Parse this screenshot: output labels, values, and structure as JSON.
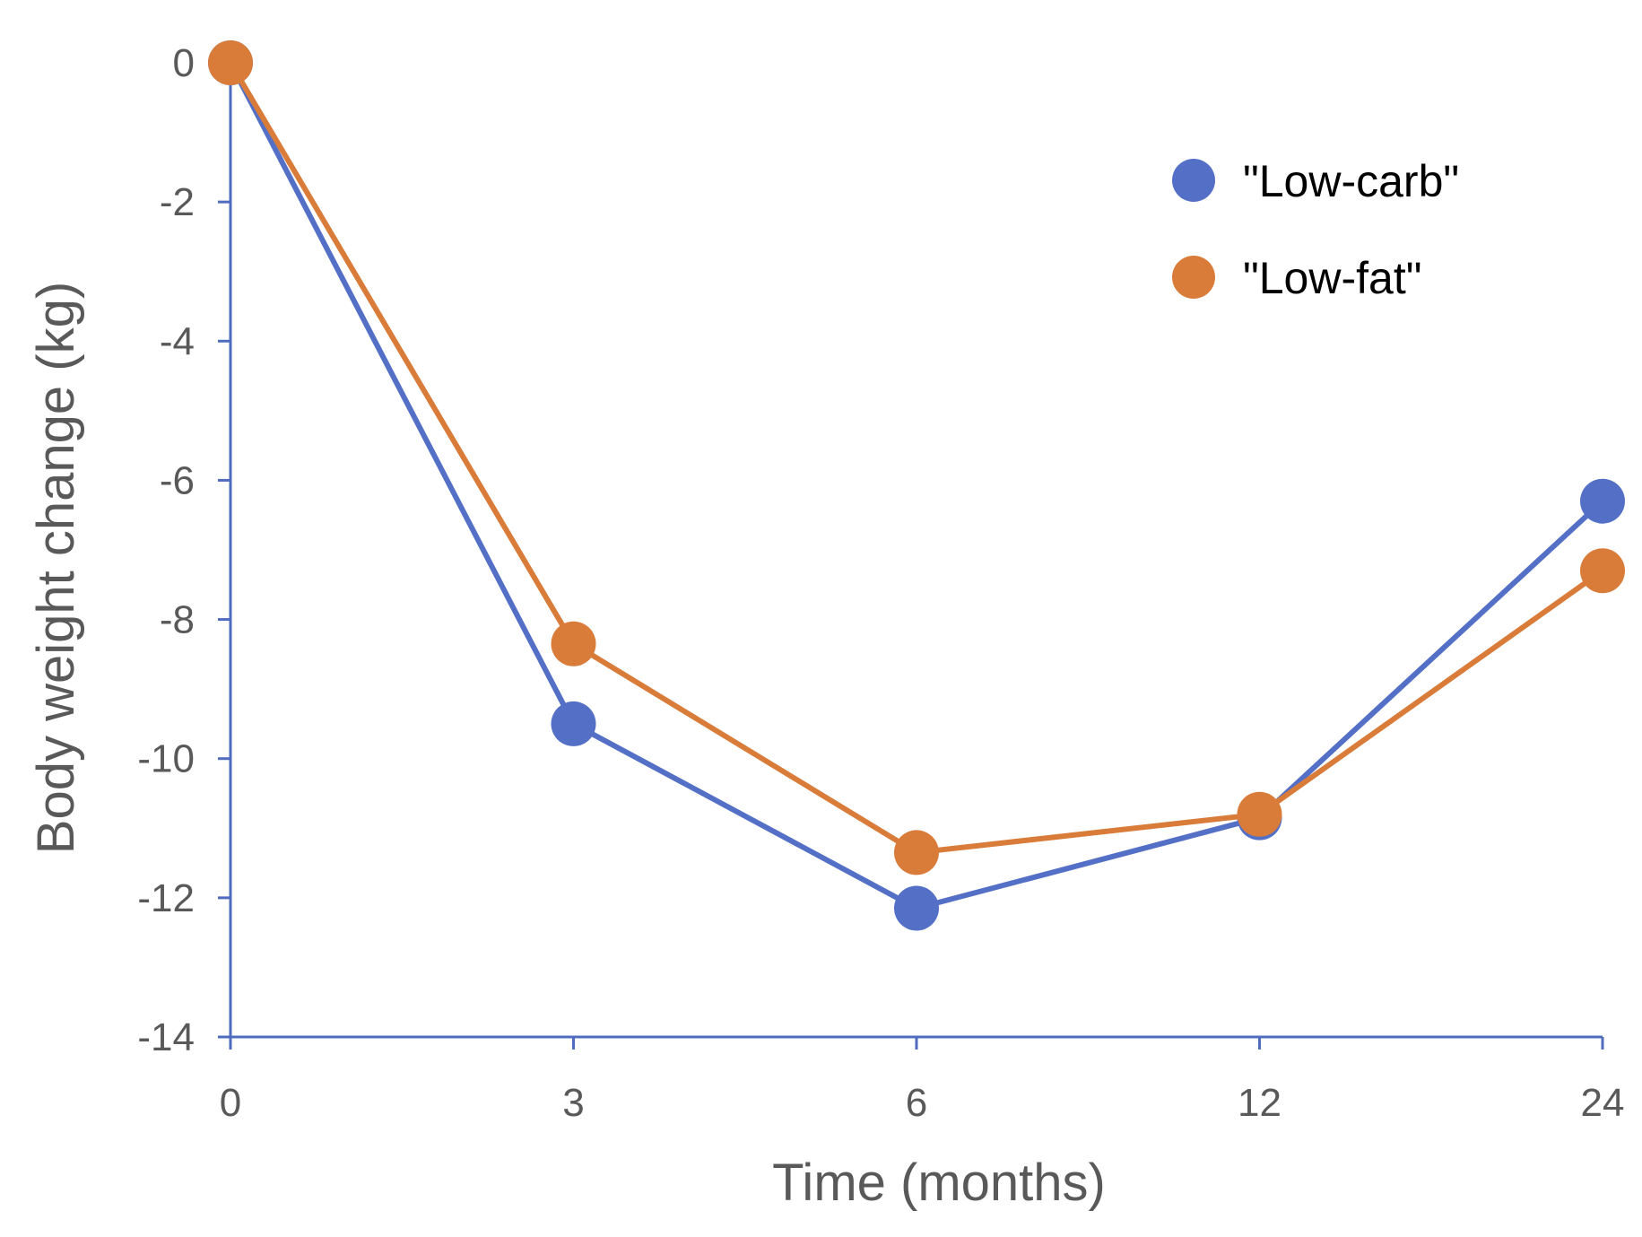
{
  "chart_data": {
    "type": "line",
    "title": "",
    "xlabel": "Time (months)",
    "ylabel": "Body weight change (kg)",
    "categories": [
      "0",
      "3",
      "6",
      "12",
      "24"
    ],
    "ylim": [
      -14,
      0
    ],
    "yticks": [
      "0",
      "-2",
      "-4",
      "-6",
      "-8",
      "-10",
      "-12",
      "-14"
    ],
    "ytick_values": [
      0,
      -2,
      -4,
      -6,
      -8,
      -10,
      -12,
      -14
    ],
    "grid": false,
    "legend_position": "top-right",
    "axis_color": "#4f6cbf",
    "series": [
      {
        "name": "\"Low-carb\"",
        "color": "#5470c6",
        "values": [
          0,
          -9.5,
          -12.15,
          -10.85,
          -6.3
        ]
      },
      {
        "name": "\"Low-fat\"",
        "color": "#d97c3a",
        "values": [
          0,
          -8.35,
          -11.35,
          -10.8,
          -7.3
        ]
      }
    ]
  }
}
